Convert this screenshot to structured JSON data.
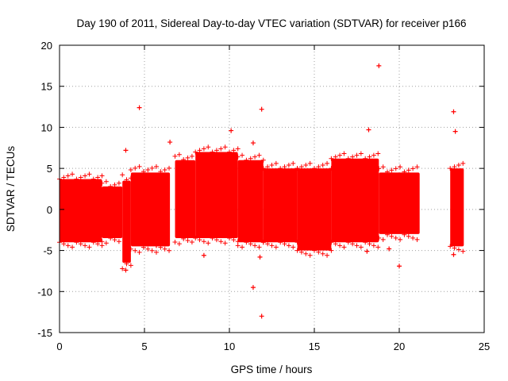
{
  "chart_data": {
    "type": "scatter",
    "title": "Day 190 of 2011, Sidereal Day-to-day VTEC variation (SDTVAR) for receiver p166",
    "xlabel": "GPS time / hours",
    "ylabel": "SDTVAR / TECUs",
    "xlim": [
      0,
      25
    ],
    "ylim": [
      -15,
      20
    ],
    "xticks": [
      0,
      5,
      10,
      15,
      20,
      25
    ],
    "yticks": [
      -15,
      -10,
      -5,
      0,
      5,
      10,
      15,
      20
    ],
    "grid": true,
    "marker": "+",
    "color": "#ff0000",
    "bands": [
      {
        "x_start": 0.0,
        "x_end": 2.5,
        "lower": -4.0,
        "upper": 3.7
      },
      {
        "x_start": 2.5,
        "x_end": 3.7,
        "lower": -3.5,
        "upper": 2.8
      },
      {
        "x_start": 3.7,
        "x_end": 4.2,
        "lower": -6.5,
        "upper": 3.5
      },
      {
        "x_start": 4.2,
        "x_end": 6.5,
        "lower": -4.5,
        "upper": 4.5
      },
      {
        "x_start": 6.8,
        "x_end": 8.0,
        "lower": -3.5,
        "upper": 6.0
      },
      {
        "x_start": 8.0,
        "x_end": 10.5,
        "lower": -3.5,
        "upper": 7.0
      },
      {
        "x_start": 10.5,
        "x_end": 12.0,
        "lower": -4.0,
        "upper": 6.0
      },
      {
        "x_start": 12.0,
        "x_end": 14.0,
        "lower": -4.0,
        "upper": 5.0
      },
      {
        "x_start": 14.0,
        "x_end": 16.0,
        "lower": -5.0,
        "upper": 5.0
      },
      {
        "x_start": 16.0,
        "x_end": 18.8,
        "lower": -4.0,
        "upper": 6.2
      },
      {
        "x_start": 18.8,
        "x_end": 21.2,
        "lower": -3.0,
        "upper": 4.5
      },
      {
        "x_start": 23.0,
        "x_end": 23.8,
        "lower": -4.5,
        "upper": 5.0
      }
    ],
    "outliers": [
      {
        "x": 4.7,
        "y": 12.4
      },
      {
        "x": 11.9,
        "y": 12.2
      },
      {
        "x": 18.8,
        "y": 17.5
      },
      {
        "x": 23.2,
        "y": 11.9
      },
      {
        "x": 23.3,
        "y": 9.5
      },
      {
        "x": 10.1,
        "y": 9.6
      },
      {
        "x": 18.2,
        "y": 9.7
      },
      {
        "x": 6.5,
        "y": 8.2
      },
      {
        "x": 11.4,
        "y": 8.1
      },
      {
        "x": 3.9,
        "y": 7.2
      },
      {
        "x": 11.4,
        "y": -9.5
      },
      {
        "x": 11.9,
        "y": -13.0
      },
      {
        "x": 20.0,
        "y": -6.9
      },
      {
        "x": 3.9,
        "y": -7.4
      },
      {
        "x": 8.5,
        "y": -5.6
      },
      {
        "x": 11.8,
        "y": -5.8
      },
      {
        "x": 23.2,
        "y": -5.5
      },
      {
        "x": 18.1,
        "y": -5.1
      },
      {
        "x": 19.4,
        "y": -4.8
      },
      {
        "x": 5.7,
        "y": -4.4
      }
    ]
  }
}
